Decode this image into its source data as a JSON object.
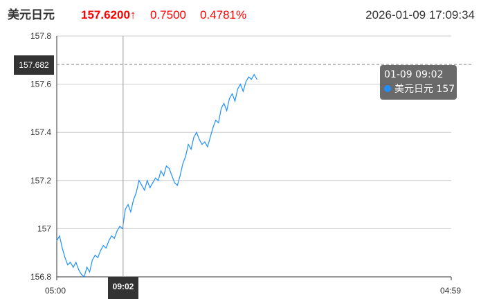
{
  "header": {
    "title": "美元日元",
    "price": "157.6200",
    "arrow": "↑",
    "change": "0.7500",
    "change_pct": "0.4781%",
    "datetime": "2026-01-09 17:09:34"
  },
  "crosshair": {
    "y_value": "157.682",
    "x_value": "09:02"
  },
  "tooltip": {
    "time": "01-09 09:02",
    "series": "美元日元",
    "value": "157"
  },
  "colors": {
    "line": "#1e90ff",
    "up": "#ff0000"
  },
  "chart_data": {
    "type": "line",
    "grid": true,
    "ylim": [
      156.8,
      157.8
    ],
    "yticks": [
      "157.8",
      "157.6",
      "157.4",
      "157.2",
      "157",
      "156.8"
    ],
    "xticks": [
      "05:00",
      "04:59"
    ],
    "series": [
      {
        "name": "美元日元",
        "x": [
          "05:00",
          "05:10",
          "05:20",
          "05:30",
          "05:40",
          "05:50",
          "06:00",
          "06:10",
          "06:20",
          "06:30",
          "06:40",
          "06:50",
          "07:00",
          "07:10",
          "07:20",
          "07:30",
          "07:40",
          "07:50",
          "08:00",
          "08:10",
          "08:20",
          "08:30",
          "08:40",
          "08:50",
          "09:00",
          "09:10",
          "09:20",
          "09:30",
          "09:40",
          "09:50",
          "10:00",
          "10:10",
          "10:20",
          "10:30",
          "10:40",
          "10:50",
          "11:00",
          "11:10",
          "11:20",
          "11:30",
          "11:40",
          "11:50",
          "12:00",
          "12:10",
          "12:20",
          "12:30",
          "12:40",
          "12:50",
          "13:00",
          "13:10",
          "13:20",
          "13:30",
          "13:40",
          "13:50",
          "14:00",
          "14:10",
          "14:20",
          "14:30",
          "14:40",
          "14:50",
          "15:00",
          "15:10",
          "15:20",
          "15:30",
          "15:40",
          "15:50",
          "16:00",
          "16:10",
          "16:20",
          "16:30",
          "16:40",
          "16:50",
          "17:00",
          "17:10"
        ],
        "values": [
          156.95,
          156.97,
          156.92,
          156.88,
          156.85,
          156.86,
          156.84,
          156.86,
          156.83,
          156.81,
          156.8,
          156.84,
          156.82,
          156.87,
          156.89,
          156.88,
          156.91,
          156.93,
          156.92,
          156.95,
          156.97,
          156.96,
          156.99,
          157.01,
          157.0,
          157.08,
          157.1,
          157.07,
          157.12,
          157.15,
          157.2,
          157.18,
          157.16,
          157.2,
          157.17,
          157.19,
          157.21,
          157.2,
          157.24,
          157.22,
          157.26,
          157.25,
          157.22,
          157.19,
          157.18,
          157.22,
          157.27,
          157.3,
          157.35,
          157.33,
          157.38,
          157.4,
          157.37,
          157.35,
          157.36,
          157.34,
          157.38,
          157.42,
          157.45,
          157.44,
          157.5,
          157.52,
          157.49,
          157.54,
          157.56,
          157.53,
          157.58,
          157.6,
          157.57,
          157.61,
          157.63,
          157.62,
          157.64,
          157.62
        ]
      }
    ]
  }
}
